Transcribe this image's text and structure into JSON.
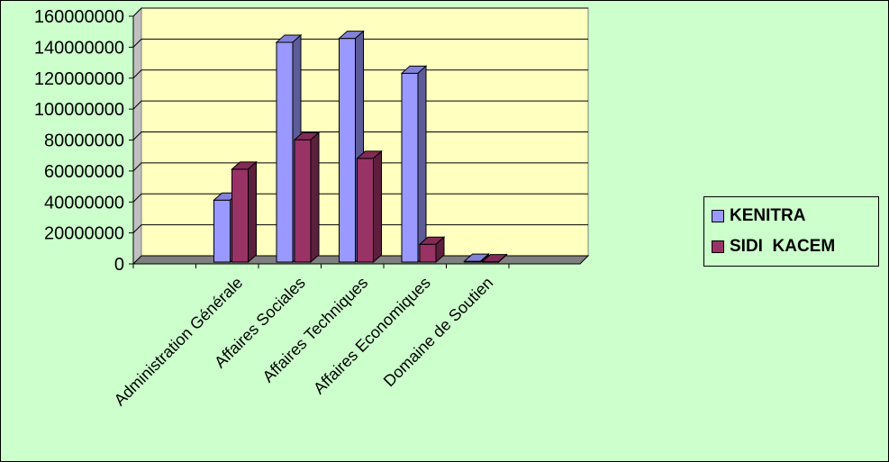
{
  "chart_data": {
    "type": "bar",
    "categories": [
      "Administration Générale",
      "Affaires Sociales",
      "Affaires Techniques",
      "Affaires Economiques",
      "Domaine de Soutien"
    ],
    "series": [
      {
        "name": "KENITRA",
        "values": [
          40000000,
          142000000,
          144500000,
          122000000,
          500000
        ],
        "color": "#9999ff"
      },
      {
        "name": "SIDI  KACEM",
        "values": [
          60000000,
          79000000,
          67000000,
          11500000,
          200000
        ],
        "color": "#993366"
      }
    ],
    "ylim": [
      0,
      160000000
    ],
    "yticks": [
      0,
      20000000,
      40000000,
      60000000,
      80000000,
      100000000,
      120000000,
      140000000,
      160000000
    ],
    "grid": true,
    "legend_position": "right",
    "three_d": true
  },
  "colors": {
    "background": "#ccffcc",
    "plot_area": "#ffffc0",
    "floor": "#808080"
  }
}
